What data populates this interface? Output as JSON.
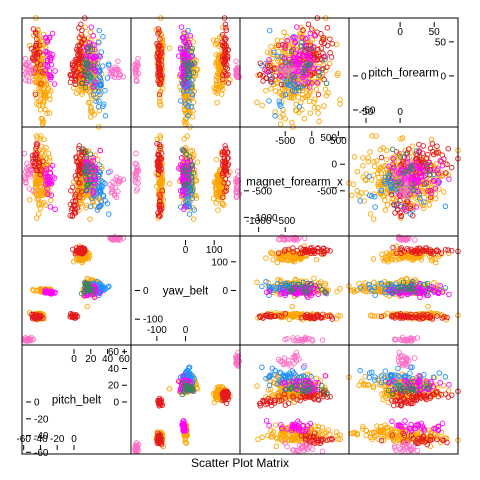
{
  "chart_data": {
    "type": "scatter",
    "subtype": "scatter-plot-matrix",
    "title": "",
    "xlabel": "Scatter Plot Matrix",
    "ylabel": "",
    "palette": [
      "#e41a1c",
      "#ff6ec7",
      "#2e8b57",
      "#1e90ff",
      "#ff00ff",
      "#ffa500"
    ],
    "variables": [
      {
        "name": "pitch_belt",
        "range": [
          -62,
          68
        ],
        "ticks_low": [
          -60,
          -40,
          -20,
          0
        ],
        "ticks_high": [
          0,
          20,
          40,
          60
        ]
      },
      {
        "name": "yaw_belt",
        "range": [
          -190,
          190
        ],
        "ticks_low": [
          -100,
          0
        ],
        "ticks_high": [
          0,
          100
        ]
      },
      {
        "name": "magnet_forearm_x",
        "range": [
          -1350,
          700
        ],
        "ticks_low": [
          -1000,
          -500
        ],
        "ticks_high": [
          -500,
          0,
          500
        ]
      },
      {
        "name": "pitch_forearm",
        "range": [
          -75,
          85
        ],
        "ticks_low": [
          -50,
          0
        ],
        "ticks_high": [
          0,
          50
        ]
      }
    ],
    "clusters": [
      {
        "id": "a",
        "vals": [
          -43,
          -88,
          -240,
          20
        ],
        "spread": [
          3,
          5,
          300,
          30
        ],
        "color": 5,
        "n": 70
      },
      {
        "id": "b",
        "vals": [
          22,
          10,
          -300,
          5
        ],
        "spread": [
          5,
          14,
          250,
          25
        ],
        "color": 5,
        "n": 110
      },
      {
        "id": "c",
        "vals": [
          10,
          120,
          -380,
          10
        ],
        "spread": [
          4,
          10,
          230,
          25
        ],
        "color": 5,
        "n": 80
      },
      {
        "id": "d",
        "vals": [
          -35,
          0,
          -200,
          -10
        ],
        "spread": [
          4,
          3,
          300,
          30
        ],
        "color": 5,
        "n": 70
      },
      {
        "id": "e",
        "vals": [
          30,
          6,
          -450,
          0
        ],
        "spread": [
          5,
          12,
          250,
          25
        ],
        "color": 3,
        "n": 45
      },
      {
        "id": "f",
        "vals": [
          8,
          140,
          -100,
          30
        ],
        "spread": [
          4,
          6,
          200,
          20
        ],
        "color": 0,
        "n": 45
      },
      {
        "id": "g",
        "vals": [
          -45,
          -92,
          50,
          25
        ],
        "spread": [
          3,
          4,
          150,
          20
        ],
        "color": 0,
        "n": 30
      },
      {
        "id": "h",
        "vals": [
          0,
          -90,
          -800,
          0
        ],
        "spread": [
          3,
          4,
          150,
          10
        ],
        "color": 0,
        "n": 20
      },
      {
        "id": "i",
        "vals": [
          -55,
          -170,
          -150,
          10
        ],
        "spread": [
          3,
          3,
          150,
          10
        ],
        "color": 1,
        "n": 20
      },
      {
        "id": "j",
        "vals": [
          50,
          180,
          -450,
          5
        ],
        "spread": [
          4,
          4,
          150,
          5
        ],
        "color": 1,
        "n": 20
      },
      {
        "id": "k",
        "vals": [
          20,
          0,
          -200,
          20
        ],
        "spread": [
          5,
          12,
          200,
          20
        ],
        "color": 4,
        "n": 40
      },
      {
        "id": "l",
        "vals": [
          -30,
          -5,
          -300,
          30
        ],
        "spread": [
          4,
          3,
          200,
          20
        ],
        "color": 4,
        "n": 30
      },
      {
        "id": "m",
        "vals": [
          15,
          8,
          -200,
          15
        ],
        "spread": [
          4,
          8,
          150,
          15
        ],
        "color": 2,
        "n": 20
      }
    ]
  }
}
